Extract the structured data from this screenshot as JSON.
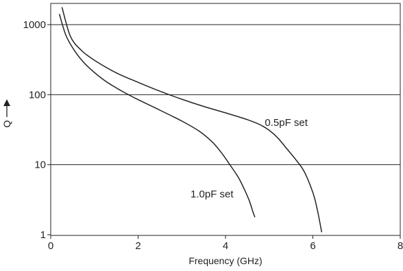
{
  "chart_data": {
    "type": "line",
    "xlabel": "Frequency (GHz)",
    "ylabel": "Q",
    "xlim": [
      0,
      8
    ],
    "ylim": [
      1,
      2000
    ],
    "yscale": "log",
    "grid": "horizontal",
    "x_ticks": [
      0,
      2,
      4,
      6,
      8
    ],
    "x_tick_labels": [
      "0",
      "2",
      "4",
      "6",
      "8"
    ],
    "y_ticks": [
      1,
      10,
      100,
      1000
    ],
    "y_tick_labels": [
      "1",
      "10",
      "100",
      "1000"
    ],
    "series": [
      {
        "name": "0.5pF set",
        "color": "#222222",
        "x": [
          0.26,
          0.45,
          0.7,
          1.0,
          1.5,
          2.0,
          2.5,
          3.0,
          3.5,
          4.0,
          4.5,
          4.8,
          5.0,
          5.2,
          5.4,
          5.6,
          5.8,
          6.0,
          6.1,
          6.2
        ],
        "y": [
          1750,
          680,
          430,
          310,
          205,
          150,
          112,
          86,
          68,
          55,
          44,
          37,
          31,
          24,
          17,
          12,
          8,
          4,
          2.3,
          1.1
        ]
      },
      {
        "name": "1.0pF set",
        "color": "#222222",
        "x": [
          0.2,
          0.35,
          0.55,
          0.8,
          1.2,
          1.6,
          2.0,
          2.5,
          3.0,
          3.4,
          3.7,
          3.9,
          4.1,
          4.3,
          4.45,
          4.55,
          4.62,
          4.67
        ],
        "y": [
          1400,
          700,
          420,
          270,
          165,
          115,
          85,
          60,
          42,
          30,
          21,
          15,
          10,
          6.5,
          4.2,
          3.0,
          2.2,
          1.8
        ]
      }
    ],
    "annotations": [
      {
        "text": "0.5pF set",
        "series": "0.5pF set",
        "x": 4.9,
        "y": 40
      },
      {
        "text": "1.0pF set",
        "series": "1.0pF set",
        "x": 3.2,
        "y": 3.8
      }
    ]
  }
}
